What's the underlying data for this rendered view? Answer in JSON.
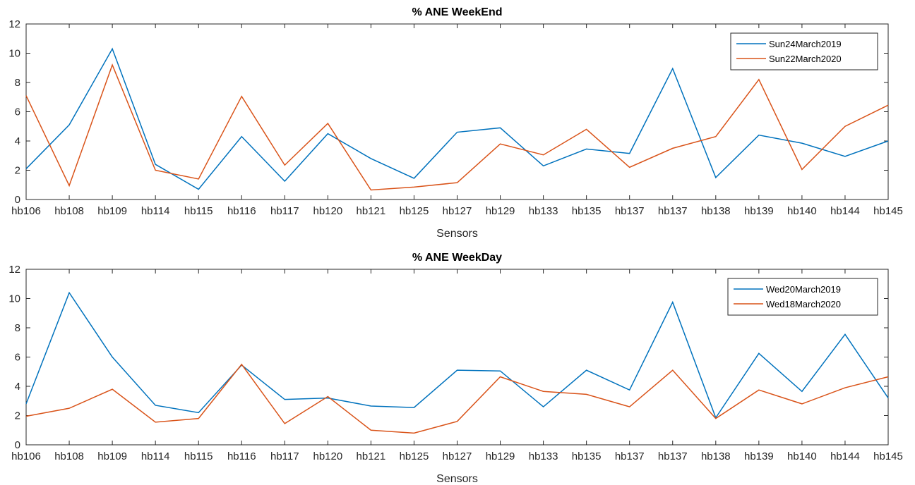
{
  "chart_data": [
    {
      "type": "line",
      "title": "% ANE WeekEnd",
      "xlabel": "Sensors",
      "ylabel": "",
      "ylim": [
        0,
        12
      ],
      "yticks": [
        0,
        2,
        4,
        6,
        8,
        10,
        12
      ],
      "grid": false,
      "legend_position": "top-right",
      "categories": [
        "hb106",
        "hb108",
        "hb109",
        "hb114",
        "hb115",
        "hb116",
        "hb117",
        "hb120",
        "hb121",
        "hb125",
        "hb127",
        "hb129",
        "hb133",
        "hb135",
        "hb137",
        "hb137",
        "hb138",
        "hb139",
        "hb140",
        "hb144",
        "hb145"
      ],
      "series": [
        {
          "name": "Sun24March2019",
          "color": "#0072BD",
          "values": [
            2.1,
            5.1,
            10.3,
            2.4,
            0.7,
            4.3,
            1.25,
            4.5,
            2.8,
            1.45,
            4.6,
            4.9,
            2.3,
            3.45,
            3.15,
            8.95,
            1.5,
            4.4,
            3.85,
            2.95,
            4.0
          ]
        },
        {
          "name": "Sun22March2020",
          "color": "#D95319",
          "values": [
            7.1,
            0.95,
            9.2,
            2.0,
            1.4,
            7.05,
            2.35,
            5.2,
            0.65,
            0.85,
            1.15,
            3.8,
            3.05,
            4.8,
            2.2,
            3.5,
            4.3,
            8.2,
            2.05,
            5.0,
            6.45
          ]
        }
      ]
    },
    {
      "type": "line",
      "title": "% ANE WeekDay",
      "xlabel": "Sensors",
      "ylabel": "",
      "ylim": [
        0,
        12
      ],
      "yticks": [
        0,
        2,
        4,
        6,
        8,
        10,
        12
      ],
      "grid": false,
      "legend_position": "top-right",
      "categories": [
        "hb106",
        "hb108",
        "hb109",
        "hb114",
        "hb115",
        "hb116",
        "hb117",
        "hb120",
        "hb121",
        "hb125",
        "hb127",
        "hb129",
        "hb133",
        "hb135",
        "hb137",
        "hb137",
        "hb138",
        "hb139",
        "hb140",
        "hb144",
        "hb145"
      ],
      "series": [
        {
          "name": "Wed20March2019",
          "color": "#0072BD",
          "values": [
            2.8,
            10.4,
            6.0,
            2.7,
            2.2,
            5.45,
            3.1,
            3.2,
            2.65,
            2.55,
            5.1,
            5.05,
            2.6,
            5.1,
            3.75,
            9.75,
            1.85,
            6.25,
            3.65,
            7.55,
            3.2
          ]
        },
        {
          "name": "Wed18March2020",
          "color": "#D95319",
          "values": [
            1.95,
            2.5,
            3.8,
            1.55,
            1.8,
            5.5,
            1.45,
            3.3,
            1.0,
            0.8,
            1.6,
            4.65,
            3.65,
            3.45,
            2.6,
            5.1,
            1.8,
            3.75,
            2.8,
            3.9,
            4.65
          ]
        }
      ]
    }
  ]
}
